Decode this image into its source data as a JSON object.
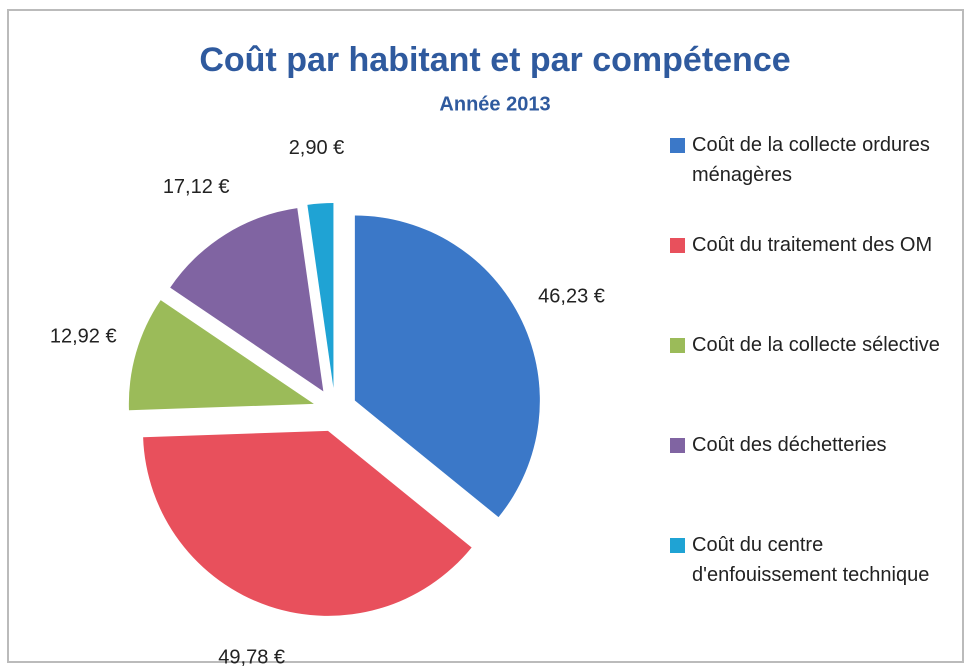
{
  "chart_data": {
    "type": "pie",
    "title": "Coût par habitant et par compétence",
    "subtitle": "Année 2013",
    "categories": [
      "Coût de la collecte ordures ménagères",
      "Coût du traitement des OM",
      "Coût de la collecte sélective",
      "Coût des déchetteries",
      "Coût du centre d'enfouissement technique"
    ],
    "values": [
      46.23,
      49.78,
      12.92,
      17.12,
      2.9
    ],
    "value_labels": [
      "46,23 €",
      "49,78 €",
      "12,92 €",
      "17,12 €",
      "2,90 €"
    ],
    "colors": [
      "#3b78c8",
      "#e8505c",
      "#9bbb59",
      "#8064a2",
      "#1fa3d4"
    ],
    "legend": "right"
  }
}
